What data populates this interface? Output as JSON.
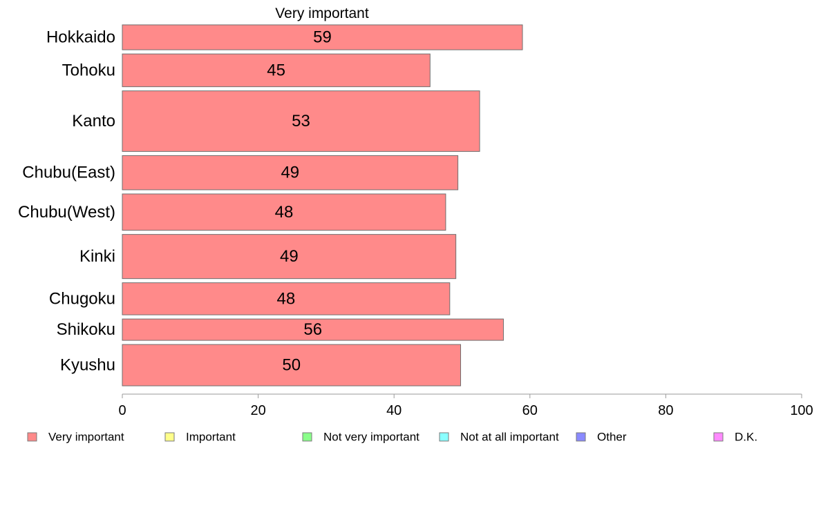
{
  "chart_data": {
    "type": "bar",
    "orientation": "horizontal",
    "title": "Very important",
    "categories": [
      "Hokkaido",
      "Tohoku",
      "Kanto",
      "Chubu(East)",
      "Chubu(West)",
      "Kinki",
      "Chugoku",
      "Shikoku",
      "Kyushu"
    ],
    "values": [
      59,
      45,
      53,
      49,
      48,
      49,
      48,
      56,
      50
    ],
    "bar_width_values": [
      58.9,
      45.3,
      52.6,
      49.4,
      47.6,
      49.1,
      48.2,
      56.1,
      49.8
    ],
    "relative_thickness": [
      35,
      46,
      85,
      48,
      51,
      62,
      45,
      30,
      58
    ],
    "xlim": [
      0,
      100
    ],
    "xticks": [
      0,
      20,
      40,
      60,
      80,
      100
    ],
    "bar_color": "#ff8a8a",
    "grid": false,
    "legend_position": "bottom",
    "legend": [
      {
        "label": "Very important",
        "color": "#ff8a8a"
      },
      {
        "label": "Important",
        "color": "#ffff8a"
      },
      {
        "label": "Not very important",
        "color": "#8aff8a"
      },
      {
        "label": "Not at all important",
        "color": "#8affff"
      },
      {
        "label": "Other",
        "color": "#8a8aff"
      },
      {
        "label": "D.K.",
        "color": "#ff8aff"
      }
    ]
  }
}
